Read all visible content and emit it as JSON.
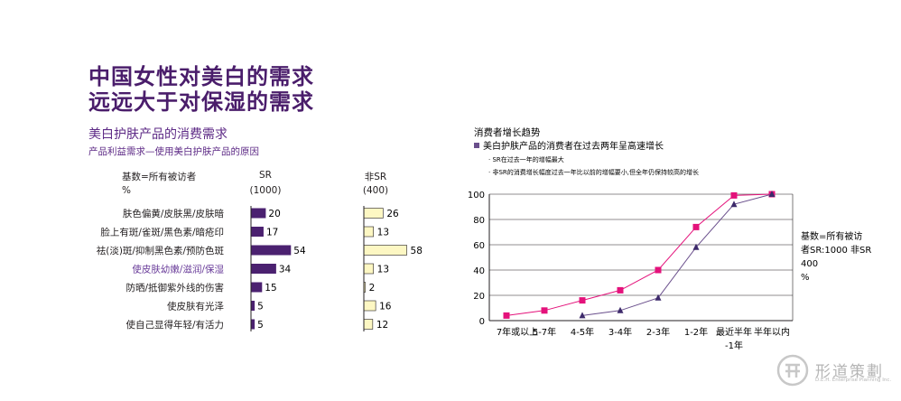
{
  "heading": {
    "line1": "中国女性对美白的需求",
    "line2": "远远大于对保湿的需求"
  },
  "bar_section": {
    "title": "美白护肤产品的消费需求",
    "subtitle": "产品利益需求—使用美白护肤产品的原因",
    "base_label": "基数=所有被访者",
    "pct_label": "%",
    "sr_head": "SR",
    "sr_base": "(1000)",
    "nonsr_head": "非SR",
    "nonsr_base": "(400)"
  },
  "line_section": {
    "title": "消费者增长趋势",
    "bullet": "美白护肤产品的消费者在过去两年呈高速增长",
    "note1": "· SR在过去一年的增幅最大",
    "note2": "· 非SR的消费增长幅度过去一年比以前的增幅要小,但全年仍保持较高的增长",
    "base_note": [
      "基数=所有被访",
      "者SR:1000  非SR",
      "400",
      "%"
    ]
  },
  "logo": {
    "name": "形道策劃",
    "tagline": "D.E.H. Enterprise Planning Inc."
  },
  "colors": {
    "title": "#4a1d6b",
    "sr_bar": "#4b2170",
    "nonsr_bar": "#fdf7c3",
    "sr_line": "#e4127b",
    "nonsr_line": "#6a4f8c"
  },
  "chart_data": [
    {
      "type": "bar",
      "orientation": "horizontal",
      "categories": [
        "肤色偏黄/皮肤黑/皮肤暗",
        "脸上有斑/雀斑/黑色素/暗疮印",
        "祛(淡)斑/抑制黑色素/预防色斑",
        "使皮肤幼嫩/滋润/保湿",
        "防晒/抵御紫外线的伤害",
        "使皮肤有光泽",
        "使自己显得年轻/有活力"
      ],
      "highlight_category_index": 3,
      "series": [
        {
          "name": "SR",
          "values": [
            20,
            17,
            54,
            34,
            15,
            5,
            5
          ],
          "value_labels": [
            "20",
            "17",
            "54",
            "34",
            "15",
            "5",
            "5"
          ]
        },
        {
          "name": "非SR",
          "values": [
            26,
            13,
            58,
            13,
            2,
            16,
            12
          ],
          "value_labels": [
            "26",
            "13",
            "58",
            "13",
            "2",
            "16",
            "12"
          ]
        }
      ],
      "grid": false
    },
    {
      "type": "line",
      "categories": [
        "7年或以上",
        "5-7年",
        "4-5年",
        "3-4年",
        "2-3年",
        "1-2年",
        "最近半年-1年",
        "半年以内"
      ],
      "category_labels": [
        [
          "7年或以上"
        ],
        [
          "5-7年"
        ],
        [
          "4-5年"
        ],
        [
          "3-4年"
        ],
        [
          "2-3年"
        ],
        [
          "1-2年"
        ],
        [
          "最近半年",
          "-1年"
        ],
        [
          "半年以内"
        ]
      ],
      "series": [
        {
          "name": "SR",
          "marker": "square",
          "values": [
            4,
            8,
            16,
            24,
            40,
            74,
            99,
            100
          ]
        },
        {
          "name": "非SR",
          "marker": "triangle",
          "values": [
            null,
            null,
            4,
            8,
            18,
            58,
            92,
            100
          ]
        }
      ],
      "ylim": [
        0,
        100
      ],
      "yticks": [
        0,
        20,
        40,
        60,
        80,
        100
      ],
      "grid": true
    }
  ]
}
